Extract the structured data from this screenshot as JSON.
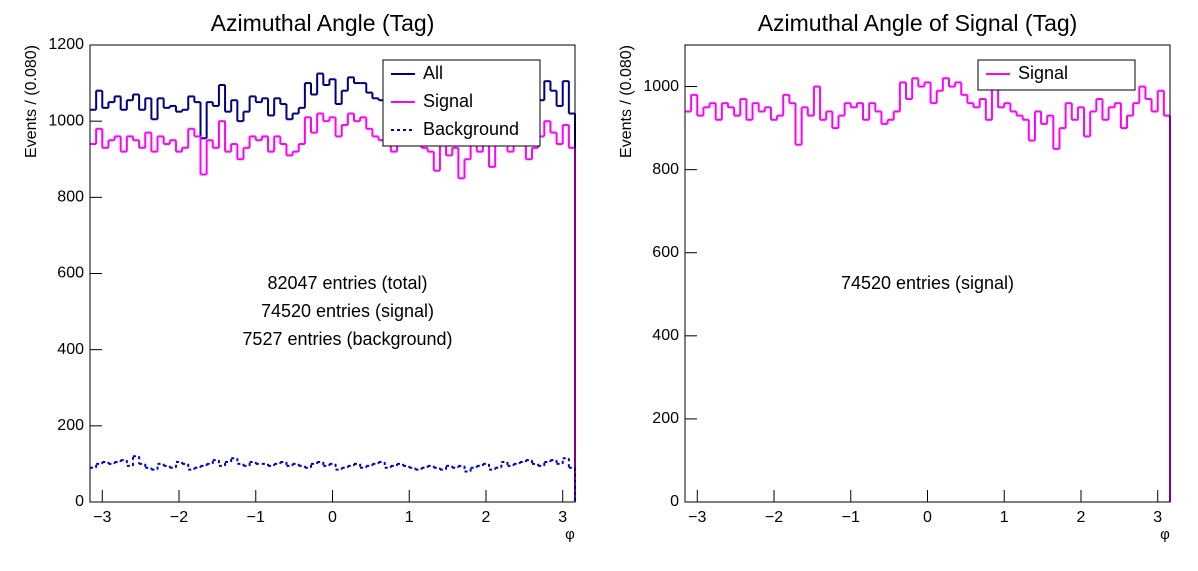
{
  "chart_data": [
    {
      "type": "histogram",
      "title": "Azimuthal Angle (Tag)",
      "xlabel": "φ",
      "ylabel": "Events / (0.080)",
      "bins": [
        -3.16,
        -3.08,
        -3.0,
        -2.92,
        -2.84,
        -2.76,
        -2.68,
        -2.6,
        -2.52,
        -2.44,
        -2.36,
        -2.28,
        -2.2,
        -2.12,
        -2.04,
        -1.96,
        -1.88,
        -1.8,
        -1.72,
        -1.64,
        -1.56,
        -1.48,
        -1.4,
        -1.32,
        -1.24,
        -1.16,
        -1.08,
        -1.0,
        -0.92,
        -0.84,
        -0.76,
        -0.68,
        -0.6,
        -0.52,
        -0.44,
        -0.36,
        -0.28,
        -0.2,
        -0.12,
        -0.04,
        0.04,
        0.12,
        0.2,
        0.28,
        0.36,
        0.44,
        0.52,
        0.6,
        0.68,
        0.76,
        0.84,
        0.92,
        1.0,
        1.08,
        1.16,
        1.24,
        1.32,
        1.4,
        1.48,
        1.56,
        1.64,
        1.72,
        1.8,
        1.88,
        1.96,
        2.04,
        2.12,
        2.2,
        2.28,
        2.36,
        2.44,
        2.52,
        2.6,
        2.68,
        2.76,
        2.84,
        2.92,
        3.0,
        3.08,
        3.16
      ],
      "series": [
        {
          "name": "All",
          "color": "#000080",
          "style": "solid",
          "values": [
            1030,
            1080,
            1035,
            1050,
            1065,
            1030,
            1055,
            1070,
            1030,
            1060,
            1005,
            1060,
            1035,
            1040,
            1025,
            1030,
            1065,
            1050,
            955,
            1050,
            1040,
            1095,
            1025,
            1055,
            1000,
            1025,
            1065,
            1050,
            1060,
            1015,
            1060,
            1045,
            1005,
            1020,
            1035,
            1100,
            1070,
            1125,
            1095,
            1110,
            1045,
            1080,
            1115,
            1100,
            1100,
            1075,
            1060,
            1055,
            1060,
            1015,
            1100,
            1045,
            1050,
            1025,
            1020,
            1015,
            960,
            1025,
            1005,
            1020,
            945,
            980,
            1050,
            1015,
            1050,
            965,
            1030,
            1075,
            1015,
            1050,
            1065,
            1010,
            1030,
            1055,
            1105,
            1080,
            1040,
            1105,
            1020
          ]
        },
        {
          "name": "Signal",
          "color": "#ff00ff",
          "style": "solid",
          "values": [
            940,
            980,
            930,
            950,
            960,
            920,
            960,
            950,
            930,
            970,
            920,
            960,
            940,
            950,
            920,
            930,
            980,
            960,
            860,
            950,
            930,
            1000,
            920,
            940,
            900,
            930,
            960,
            950,
            960,
            920,
            960,
            940,
            910,
            920,
            940,
            1010,
            970,
            1020,
            1000,
            1010,
            960,
            990,
            1020,
            1000,
            1010,
            980,
            960,
            950,
            970,
            920,
            1000,
            950,
            960,
            940,
            930,
            920,
            870,
            940,
            910,
            930,
            850,
            900,
            960,
            920,
            950,
            880,
            940,
            970,
            920,
            950,
            960,
            900,
            930,
            960,
            1000,
            970,
            940,
            990,
            930
          ]
        },
        {
          "name": "Background",
          "color": "#0000cc",
          "style": "dotted",
          "values": [
            90,
            100,
            105,
            100,
            105,
            110,
            95,
            120,
            100,
            90,
            85,
            100,
            95,
            90,
            105,
            100,
            85,
            90,
            95,
            100,
            110,
            95,
            105,
            115,
            100,
            95,
            105,
            100,
            100,
            95,
            100,
            105,
            95,
            100,
            95,
            90,
            100,
            105,
            95,
            100,
            85,
            90,
            95,
            100,
            90,
            95,
            100,
            105,
            90,
            95,
            100,
            95,
            90,
            85,
            90,
            95,
            90,
            85,
            95,
            90,
            95,
            80,
            90,
            95,
            100,
            85,
            90,
            105,
            95,
            100,
            105,
            110,
            100,
            95,
            105,
            110,
            100,
            115,
            90
          ]
        }
      ],
      "xlim": [
        -3.16,
        3.16
      ],
      "ylim": [
        0,
        1200
      ],
      "xticks": [
        {
          "value": -3,
          "label": "−3"
        },
        {
          "value": -2,
          "label": "−2"
        },
        {
          "value": -1,
          "label": "−1"
        },
        0,
        1,
        2,
        3
      ],
      "yticks": [
        0,
        200,
        400,
        600,
        800,
        1000,
        1200
      ],
      "legend": "upper right",
      "annotations": [
        "82047 entries (total)",
        "74520 entries (signal)",
        "7527 entries (background)"
      ]
    },
    {
      "type": "histogram",
      "title": "Azimuthal Angle of Signal (Tag)",
      "xlabel": "φ",
      "ylabel": "Events / (0.080)",
      "bins": [
        -3.16,
        -3.08,
        -3.0,
        -2.92,
        -2.84,
        -2.76,
        -2.68,
        -2.6,
        -2.52,
        -2.44,
        -2.36,
        -2.28,
        -2.2,
        -2.12,
        -2.04,
        -1.96,
        -1.88,
        -1.8,
        -1.72,
        -1.64,
        -1.56,
        -1.48,
        -1.4,
        -1.32,
        -1.24,
        -1.16,
        -1.08,
        -1.0,
        -0.92,
        -0.84,
        -0.76,
        -0.68,
        -0.6,
        -0.52,
        -0.44,
        -0.36,
        -0.28,
        -0.2,
        -0.12,
        -0.04,
        0.04,
        0.12,
        0.2,
        0.28,
        0.36,
        0.44,
        0.52,
        0.6,
        0.68,
        0.76,
        0.84,
        0.92,
        1.0,
        1.08,
        1.16,
        1.24,
        1.32,
        1.4,
        1.48,
        1.56,
        1.64,
        1.72,
        1.8,
        1.88,
        1.96,
        2.04,
        2.12,
        2.2,
        2.28,
        2.36,
        2.44,
        2.52,
        2.6,
        2.68,
        2.76,
        2.84,
        2.92,
        3.0,
        3.08,
        3.16
      ],
      "series": [
        {
          "name": "Signal",
          "color": "#ff00ff",
          "style": "solid",
          "values": [
            940,
            980,
            930,
            950,
            960,
            920,
            960,
            950,
            930,
            970,
            920,
            960,
            940,
            950,
            920,
            930,
            980,
            960,
            860,
            950,
            930,
            1000,
            920,
            940,
            900,
            930,
            960,
            950,
            960,
            920,
            960,
            940,
            910,
            920,
            940,
            1010,
            970,
            1020,
            1000,
            1010,
            960,
            990,
            1020,
            1000,
            1010,
            980,
            960,
            950,
            970,
            920,
            1000,
            950,
            960,
            940,
            930,
            920,
            870,
            940,
            910,
            930,
            850,
            900,
            960,
            920,
            950,
            880,
            940,
            970,
            920,
            950,
            960,
            900,
            930,
            960,
            1000,
            970,
            940,
            990,
            930
          ]
        }
      ],
      "xlim": [
        -3.16,
        3.16
      ],
      "ylim": [
        0,
        1100
      ],
      "xticks": [
        {
          "value": -3,
          "label": "−3"
        },
        {
          "value": -2,
          "label": "−2"
        },
        {
          "value": -1,
          "label": "−1"
        },
        0,
        1,
        2,
        3
      ],
      "yticks": [
        0,
        200,
        400,
        600,
        800,
        1000
      ],
      "legend": "upper right",
      "annotations": [
        "74520 entries (signal)"
      ]
    }
  ]
}
